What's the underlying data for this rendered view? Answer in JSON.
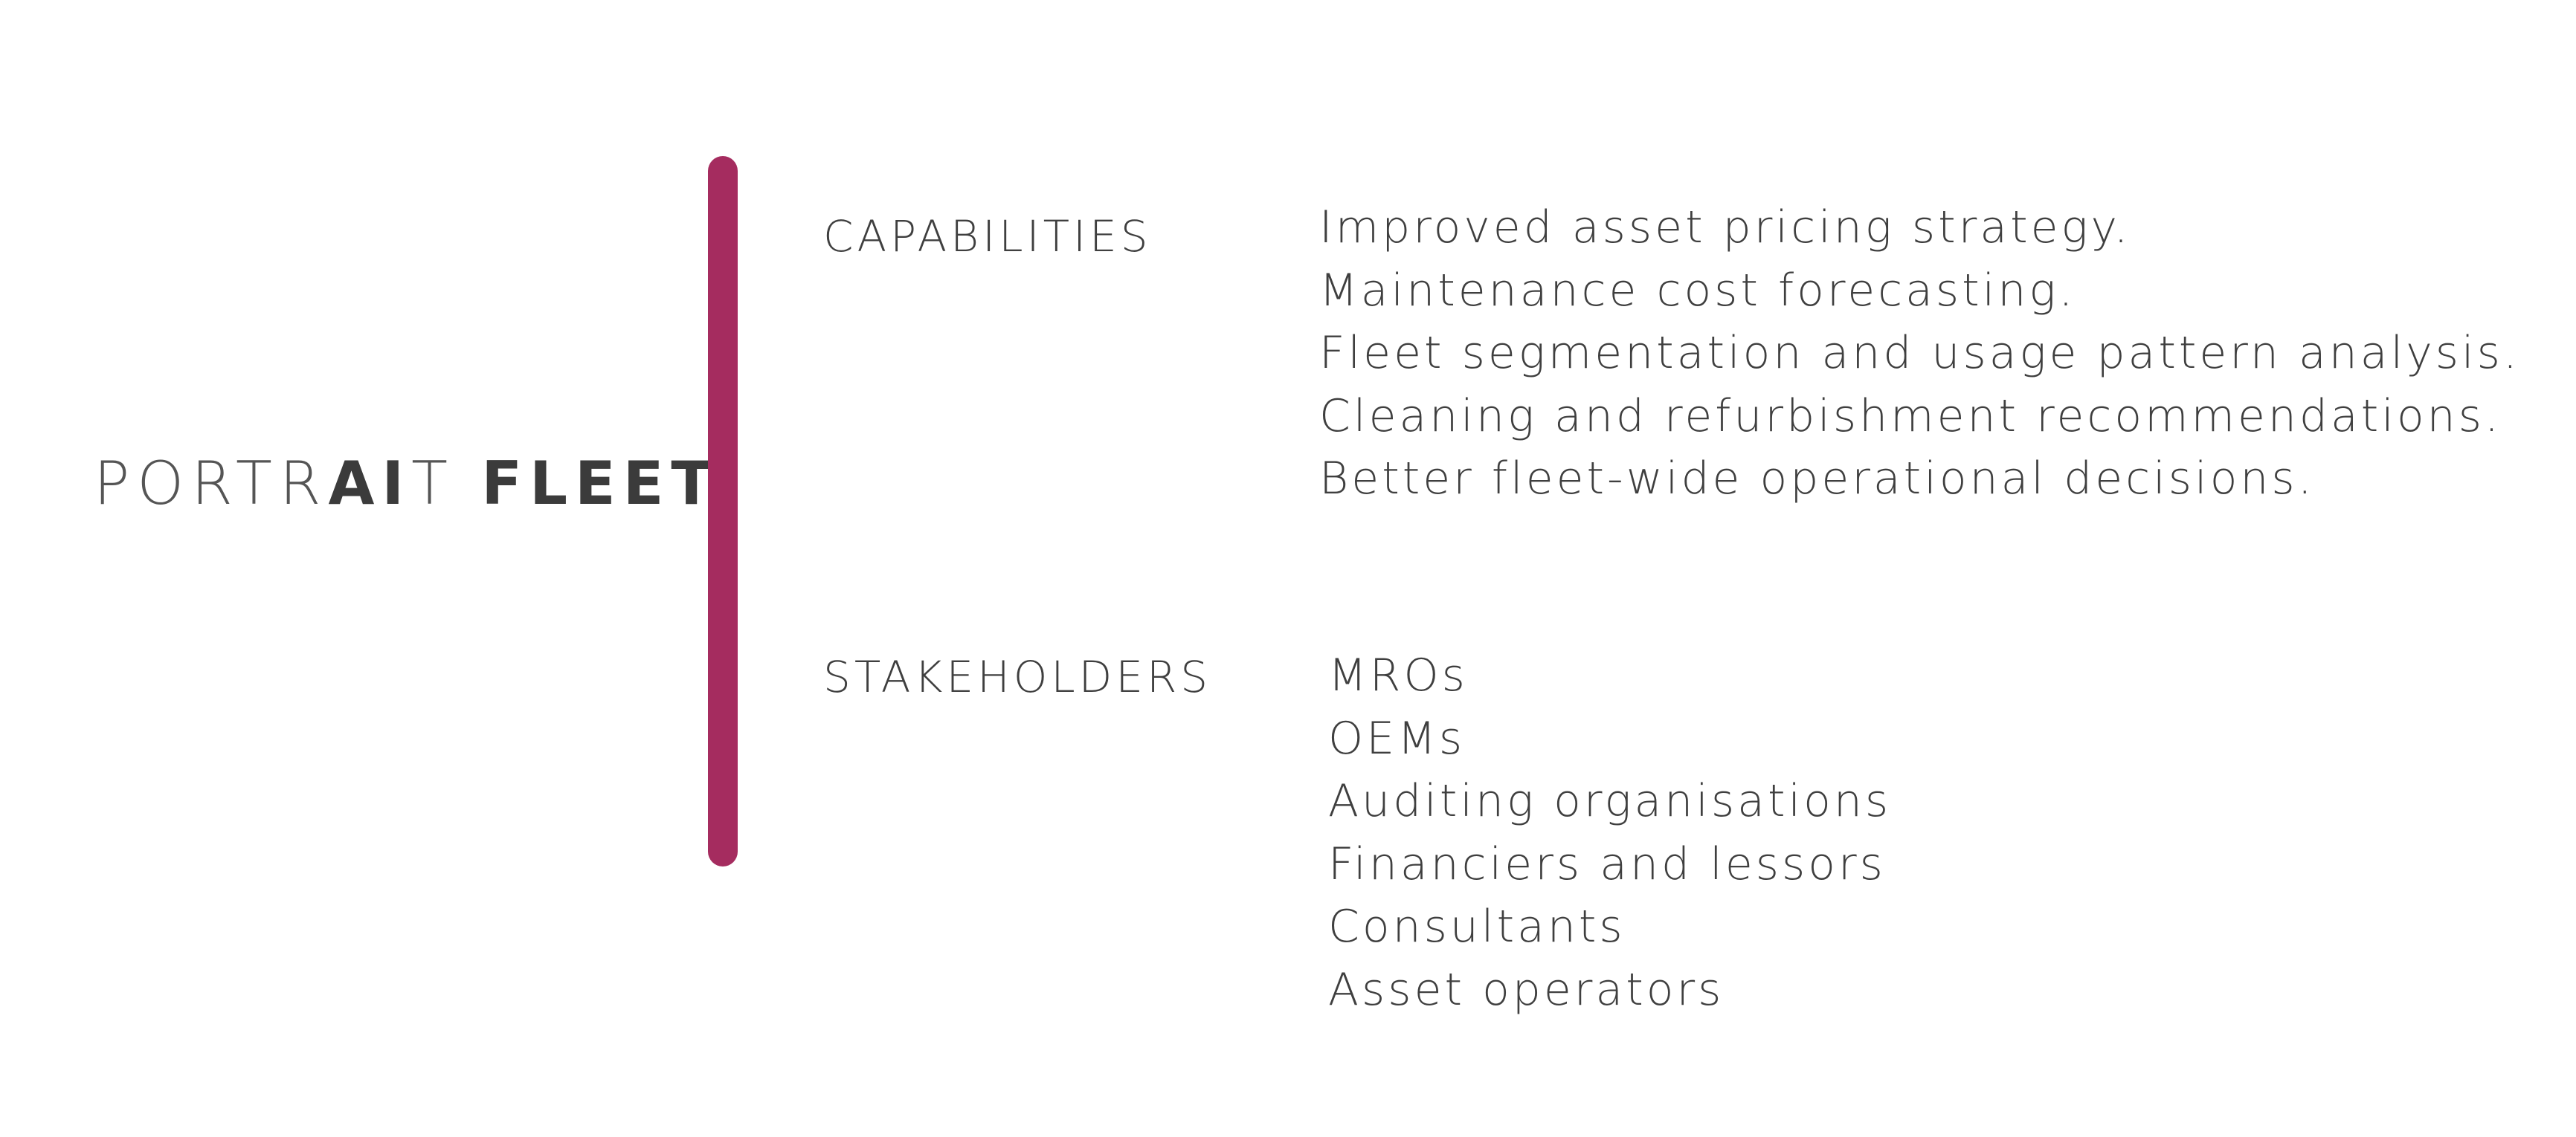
{
  "brand": {
    "part1": "PORTR",
    "part2": "AI",
    "part3": "T ",
    "part4": "FLEET"
  },
  "accent_color": "#a52c5f",
  "capabilities": {
    "label": "CAPABILITIES",
    "items": [
      "Improved asset pricing strategy.",
      "Maintenance cost forecasting.",
      "Fleet segmentation and usage pattern analysis.",
      "Cleaning and refurbishment recommendations.",
      "Better fleet-wide operational decisions."
    ]
  },
  "stakeholders": {
    "label": "STAKEHOLDERS",
    "items": [
      "MROs",
      "OEMs",
      "Auditing organisations",
      "Financiers and lessors",
      "Consultants",
      "Asset operators"
    ]
  }
}
